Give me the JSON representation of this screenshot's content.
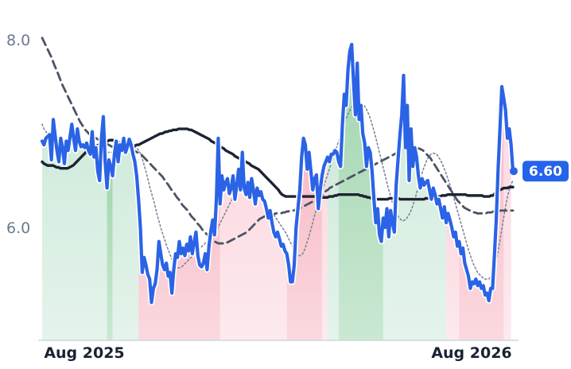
{
  "chart_data": {
    "type": "line",
    "title": "",
    "xlabel": "",
    "ylabel": "",
    "x_tick_labels": [
      "Aug 2025",
      "Aug 2026"
    ],
    "y_ticks": [
      6.0,
      8.0
    ],
    "y_tick_labels": [
      "6.0",
      "8.0"
    ],
    "ylim": [
      4.78,
      8.35
    ],
    "grid": false,
    "last_value_label": "6.60",
    "colors": {
      "price": "#2b63e6",
      "slow_ma": "#1c2333",
      "dashed_ma": "#4a5366",
      "dotted_ma": "#7b8499",
      "gain_strong": "#9fd5ad",
      "gain_light": "#cfeadb",
      "loss_strong": "#f7b9c5",
      "loss_light": "#fbd9e0"
    },
    "regimes": [
      {
        "start": 0,
        "end": 35,
        "kind": "gain_light"
      },
      {
        "start": 35,
        "end": 38,
        "kind": "gain_strong"
      },
      {
        "start": 38,
        "end": 52,
        "kind": "gain_light"
      },
      {
        "start": 52,
        "end": 96,
        "kind": "loss_strong"
      },
      {
        "start": 96,
        "end": 132,
        "kind": "loss_light"
      },
      {
        "start": 132,
        "end": 151,
        "kind": "loss_strong"
      },
      {
        "start": 151,
        "end": 154,
        "kind": "loss_light"
      },
      {
        "start": 154,
        "end": 160,
        "kind": "gain_light"
      },
      {
        "start": 160,
        "end": 184,
        "kind": "gain_strong"
      },
      {
        "start": 184,
        "end": 218,
        "kind": "gain_light"
      },
      {
        "start": 218,
        "end": 225,
        "kind": "loss_light"
      },
      {
        "start": 225,
        "end": 249,
        "kind": "loss_strong"
      },
      {
        "start": 249,
        "end": 253,
        "kind": "loss_light"
      }
    ],
    "series": [
      {
        "key": "price",
        "values": [
          6.92,
          6.88,
          6.95,
          6.97,
          6.99,
          6.72,
          7.15,
          6.98,
          6.82,
          6.7,
          6.95,
          6.85,
          6.68,
          6.92,
          6.82,
          6.96,
          7.1,
          6.95,
          6.82,
          7.05,
          6.92,
          6.86,
          6.88,
          6.85,
          6.9,
          6.82,
          6.78,
          7.02,
          6.75,
          6.85,
          6.6,
          6.5,
          6.95,
          7.18,
          6.7,
          6.42,
          6.72,
          6.65,
          6.55,
          6.78,
          6.92,
          6.7,
          6.88,
          6.82,
          6.95,
          6.8,
          6.86,
          6.94,
          6.88,
          6.78,
          6.7,
          6.55,
          6.3,
          6.0,
          5.52,
          5.68,
          5.6,
          5.5,
          5.45,
          5.2,
          5.35,
          5.4,
          5.55,
          5.85,
          5.72,
          5.6,
          5.55,
          5.62,
          5.48,
          5.52,
          5.3,
          5.55,
          5.72,
          5.68,
          5.85,
          5.72,
          5.78,
          5.7,
          5.82,
          5.75,
          5.9,
          5.72,
          5.84,
          5.95,
          5.7,
          5.6,
          5.58,
          5.62,
          5.72,
          5.55,
          5.8,
          5.96,
          6.08,
          5.92,
          6.3,
          6.95,
          6.25,
          6.55,
          6.4,
          6.48,
          6.52,
          6.36,
          6.42,
          6.55,
          6.3,
          6.45,
          6.62,
          6.4,
          6.8,
          6.42,
          6.35,
          6.48,
          6.32,
          6.52,
          6.4,
          6.25,
          6.42,
          6.34,
          6.38,
          6.3,
          6.28,
          6.2,
          6.1,
          6.18,
          6.05,
          5.95,
          5.9,
          5.95,
          5.88,
          5.8,
          5.82,
          5.75,
          5.72,
          5.6,
          5.42,
          5.42,
          5.6,
          6.0,
          6.2,
          6.4,
          6.75,
          6.95,
          6.88,
          6.62,
          6.8,
          6.6,
          6.4,
          6.52,
          6.56,
          6.2,
          6.4,
          6.55,
          6.65,
          6.7,
          6.75,
          6.7,
          6.78,
          6.78,
          6.82,
          6.8,
          6.7,
          6.65,
          7.1,
          7.42,
          7.3,
          7.68,
          7.88,
          7.95,
          7.55,
          7.2,
          7.75,
          7.15,
          7.3,
          7.0,
          6.9,
          6.65,
          6.85,
          6.8,
          6.6,
          6.3,
          6.05,
          6.2,
          5.92,
          5.85,
          6.1,
          6.0,
          6.2,
          5.9,
          6.18,
          6.05,
          5.95,
          6.45,
          6.72,
          6.98,
          7.2,
          7.62,
          6.85,
          7.3,
          6.5,
          7.05,
          6.65,
          6.85,
          6.75,
          6.55,
          6.42,
          6.52,
          6.45,
          6.48,
          6.5,
          6.4,
          6.3,
          6.42,
          6.35,
          6.25,
          6.3,
          6.2,
          6.1,
          6.22,
          6.05,
          6.15,
          6.08,
          6.0,
          5.9,
          5.95,
          5.8,
          5.85,
          5.72,
          5.78,
          5.62,
          5.55,
          5.48,
          5.35,
          5.42,
          5.4,
          5.45,
          5.38,
          5.42,
          5.35,
          5.38,
          5.28,
          5.3,
          5.22,
          5.35,
          5.35,
          5.7,
          6.08,
          6.62,
          7.05,
          7.5,
          7.38,
          7.25,
          6.95,
          7.05,
          6.88,
          6.6
        ]
      },
      {
        "key": "slow_ma",
        "values": [
          6.7,
          6.68,
          6.67,
          6.66,
          6.66,
          6.66,
          6.66,
          6.65,
          6.64,
          6.64,
          6.63,
          6.63,
          6.63,
          6.63,
          6.63,
          6.64,
          6.65,
          6.66,
          6.68,
          6.7,
          6.72,
          6.74,
          6.76,
          6.78,
          6.8,
          6.82,
          6.83,
          6.84,
          6.85,
          6.86,
          6.87,
          6.88,
          6.89,
          6.9,
          6.91,
          6.92,
          6.92,
          6.93,
          6.93,
          6.93,
          6.92,
          6.92,
          6.91,
          6.9,
          6.89,
          6.88,
          6.87,
          6.86,
          6.86,
          6.86,
          6.86,
          6.87,
          6.88,
          6.88,
          6.89,
          6.9,
          6.91,
          6.92,
          6.93,
          6.94,
          6.95,
          6.96,
          6.97,
          6.98,
          6.99,
          7.0,
          7.0,
          7.01,
          7.02,
          7.02,
          7.03,
          7.03,
          7.04,
          7.04,
          7.04,
          7.05,
          7.05,
          7.05,
          7.05,
          7.05,
          7.05,
          7.04,
          7.04,
          7.03,
          7.02,
          7.01,
          7.0,
          6.99,
          6.98,
          6.97,
          6.96,
          6.95,
          6.94,
          6.92,
          6.91,
          6.9,
          6.89,
          6.88,
          6.86,
          6.85,
          6.84,
          6.82,
          6.81,
          6.8,
          6.79,
          6.78,
          6.76,
          6.75,
          6.74,
          6.73,
          6.72,
          6.71,
          6.7,
          6.69,
          6.68,
          6.66,
          6.65,
          6.64,
          6.63,
          6.62,
          6.6,
          6.58,
          6.56,
          6.54,
          6.52,
          6.5,
          6.48,
          6.46,
          6.44,
          6.42,
          6.4,
          6.37,
          6.35,
          6.34,
          6.33,
          6.33,
          6.33,
          6.33,
          6.33,
          6.33,
          6.33,
          6.33,
          6.33,
          6.33,
          6.33,
          6.33,
          6.33,
          6.33,
          6.33,
          6.33,
          6.33,
          6.32,
          6.32,
          6.32,
          6.32,
          6.32,
          6.32,
          6.32,
          6.33,
          6.33,
          6.33,
          6.34,
          6.34,
          6.35,
          6.35,
          6.35,
          6.35,
          6.35,
          6.35,
          6.35,
          6.35,
          6.35,
          6.35,
          6.35,
          6.35,
          6.34,
          6.34,
          6.33,
          6.33,
          6.32,
          6.32,
          6.31,
          6.31,
          6.3,
          6.3,
          6.3,
          6.3,
          6.3,
          6.3,
          6.3,
          6.3,
          6.31,
          6.31,
          6.31,
          6.31,
          6.31,
          6.31,
          6.3,
          6.3,
          6.3,
          6.3,
          6.3,
          6.3,
          6.3,
          6.3,
          6.3,
          6.3,
          6.3,
          6.3,
          6.3,
          6.3,
          6.31,
          6.31,
          6.31,
          6.31,
          6.32,
          6.32,
          6.32,
          6.33,
          6.33,
          6.34,
          6.34,
          6.34,
          6.35,
          6.35,
          6.35,
          6.35,
          6.35,
          6.35,
          6.35,
          6.35,
          6.35,
          6.35,
          6.35,
          6.34,
          6.34,
          6.34,
          6.34,
          6.34,
          6.34,
          6.34,
          6.34,
          6.34,
          6.33,
          6.33,
          6.33,
          6.33,
          6.34,
          6.34,
          6.36,
          6.38,
          6.39,
          6.4,
          6.41,
          6.42,
          6.42,
          6.42,
          6.43,
          6.43,
          6.43
        ]
      },
      {
        "key": "dashed_ma",
        "values": [
          8.02,
          7.98,
          7.94,
          7.9,
          7.86,
          7.82,
          7.77,
          7.72,
          7.68,
          7.63,
          7.58,
          7.53,
          7.49,
          7.45,
          7.41,
          7.37,
          7.33,
          7.29,
          7.25,
          7.21,
          7.17,
          7.13,
          7.1,
          7.07,
          7.04,
          7.02,
          7.0,
          6.98,
          6.97,
          6.96,
          6.95,
          6.94,
          6.93,
          6.92,
          6.91,
          6.9,
          6.89,
          6.88,
          6.87,
          6.86,
          6.85,
          6.84,
          6.83,
          6.82,
          6.82,
          6.82,
          6.82,
          6.82,
          6.82,
          6.82,
          6.82,
          6.82,
          6.81,
          6.8,
          6.79,
          6.78,
          6.76,
          6.74,
          6.72,
          6.7,
          6.68,
          6.66,
          6.64,
          6.62,
          6.6,
          6.58,
          6.56,
          6.54,
          6.51,
          6.48,
          6.46,
          6.43,
          6.4,
          6.38,
          6.35,
          6.32,
          6.3,
          6.27,
          6.24,
          6.22,
          6.2,
          6.18,
          6.15,
          6.12,
          6.1,
          6.08,
          6.05,
          6.03,
          6.01,
          5.98,
          5.96,
          5.94,
          5.92,
          5.9,
          5.88,
          5.86,
          5.85,
          5.84,
          5.83,
          5.83,
          5.83,
          5.83,
          5.83,
          5.84,
          5.85,
          5.86,
          5.87,
          5.88,
          5.89,
          5.9,
          5.91,
          5.92,
          5.93,
          5.94,
          5.95,
          5.97,
          5.99,
          6.01,
          6.03,
          6.05,
          6.07,
          6.09,
          6.1,
          6.11,
          6.12,
          6.13,
          6.13,
          6.14,
          6.14,
          6.14,
          6.15,
          6.15,
          6.15,
          6.15,
          6.16,
          6.16,
          6.17,
          6.17,
          6.18,
          6.18,
          6.18,
          6.19,
          6.19,
          6.2,
          6.21,
          6.22,
          6.23,
          6.24,
          6.25,
          6.26,
          6.27,
          6.28,
          6.29,
          6.3,
          6.32,
          6.34,
          6.35,
          6.37,
          6.39,
          6.4,
          6.42,
          6.43,
          6.44,
          6.45,
          6.46,
          6.47,
          6.48,
          6.49,
          6.5,
          6.51,
          6.52,
          6.53,
          6.54,
          6.55,
          6.56,
          6.57,
          6.58,
          6.59,
          6.6,
          6.61,
          6.62,
          6.63,
          6.64,
          6.65,
          6.66,
          6.67,
          6.68,
          6.69,
          6.7,
          6.71,
          6.72,
          6.73,
          6.74,
          6.75,
          6.76,
          6.77,
          6.78,
          6.79,
          6.8,
          6.81,
          6.82,
          6.83,
          6.84,
          6.84,
          6.85,
          6.85,
          6.85,
          6.85,
          6.85,
          6.84,
          6.84,
          6.83,
          6.82,
          6.8,
          6.78,
          6.76,
          6.74,
          6.71,
          6.68,
          6.65,
          6.62,
          6.59,
          6.56,
          6.53,
          6.5,
          6.47,
          6.44,
          6.41,
          6.38,
          6.35,
          6.32,
          6.29,
          6.27,
          6.25,
          6.23,
          6.21,
          6.2,
          6.19,
          6.18,
          6.17,
          6.16,
          6.16,
          6.15,
          6.15,
          6.15,
          6.15,
          6.15,
          6.15,
          6.16,
          6.16,
          6.16,
          6.17,
          6.17,
          6.17,
          6.17,
          6.18,
          6.18,
          6.18,
          6.18,
          6.18,
          6.18,
          6.18,
          6.18
        ]
      },
      {
        "key": "dotted_ma",
        "values": [
          7.1,
          7.05,
          7.02,
          7.0,
          6.98,
          6.97,
          6.96,
          6.95,
          6.94,
          6.93,
          6.92,
          6.92,
          6.91,
          6.91,
          6.9,
          6.9,
          6.9,
          6.89,
          6.89,
          6.88,
          6.88,
          6.88,
          6.88,
          6.88,
          6.88,
          6.88,
          6.87,
          6.87,
          6.86,
          6.86,
          6.85,
          6.84,
          6.83,
          6.82,
          6.81,
          6.8,
          6.8,
          6.8,
          6.8,
          6.8,
          6.81,
          6.82,
          6.83,
          6.84,
          6.85,
          6.86,
          6.86,
          6.86,
          6.86,
          6.86,
          6.85,
          6.84,
          6.82,
          6.78,
          6.72,
          6.65,
          6.58,
          6.5,
          6.42,
          6.35,
          6.28,
          6.2,
          6.12,
          6.05,
          5.98,
          5.92,
          5.86,
          5.8,
          5.75,
          5.7,
          5.65,
          5.6,
          5.58,
          5.57,
          5.57,
          5.58,
          5.6,
          5.62,
          5.64,
          5.66,
          5.68,
          5.7,
          5.72,
          5.74,
          5.76,
          5.78,
          5.8,
          5.82,
          5.84,
          5.86,
          5.88,
          5.9,
          5.92,
          5.95,
          5.98,
          6.02,
          6.06,
          6.1,
          6.14,
          6.18,
          6.22,
          6.26,
          6.3,
          6.34,
          6.38,
          6.42,
          6.45,
          6.47,
          6.49,
          6.5,
          6.5,
          6.5,
          6.49,
          6.47,
          6.45,
          6.42,
          6.39,
          6.36,
          6.33,
          6.3,
          6.27,
          6.24,
          6.21,
          6.18,
          6.15,
          6.12,
          6.09,
          6.06,
          6.03,
          6.0,
          5.97,
          5.94,
          5.9,
          5.86,
          5.82,
          5.78,
          5.75,
          5.72,
          5.7,
          5.7,
          5.72,
          5.76,
          5.82,
          5.88,
          5.95,
          6.02,
          6.1,
          6.17,
          6.24,
          6.3,
          6.36,
          6.42,
          6.48,
          6.54,
          6.6,
          6.66,
          6.72,
          6.78,
          6.84,
          6.9,
          6.96,
          7.02,
          7.08,
          7.14,
          7.19,
          7.23,
          7.27,
          7.3,
          7.32,
          7.33,
          7.33,
          7.33,
          7.32,
          7.3,
          7.27,
          7.23,
          7.18,
          7.12,
          7.05,
          6.98,
          6.9,
          6.82,
          6.74,
          6.66,
          6.58,
          6.5,
          6.42,
          6.35,
          6.28,
          6.22,
          6.17,
          6.13,
          6.1,
          6.08,
          6.07,
          6.08,
          6.1,
          6.13,
          6.17,
          6.22,
          6.28,
          6.35,
          6.42,
          6.5,
          6.57,
          6.63,
          6.68,
          6.73,
          6.76,
          6.78,
          6.79,
          6.79,
          6.78,
          6.75,
          6.72,
          6.68,
          6.63,
          6.58,
          6.52,
          6.46,
          6.4,
          6.33,
          6.26,
          6.19,
          6.12,
          6.05,
          5.98,
          5.91,
          5.84,
          5.77,
          5.71,
          5.65,
          5.6,
          5.56,
          5.52,
          5.5,
          5.48,
          5.46,
          5.45,
          5.45,
          5.45,
          5.47,
          5.5,
          5.56,
          5.64,
          5.74,
          5.86,
          5.98,
          6.1,
          6.22,
          6.32,
          6.4,
          6.46,
          6.5
        ]
      }
    ]
  }
}
